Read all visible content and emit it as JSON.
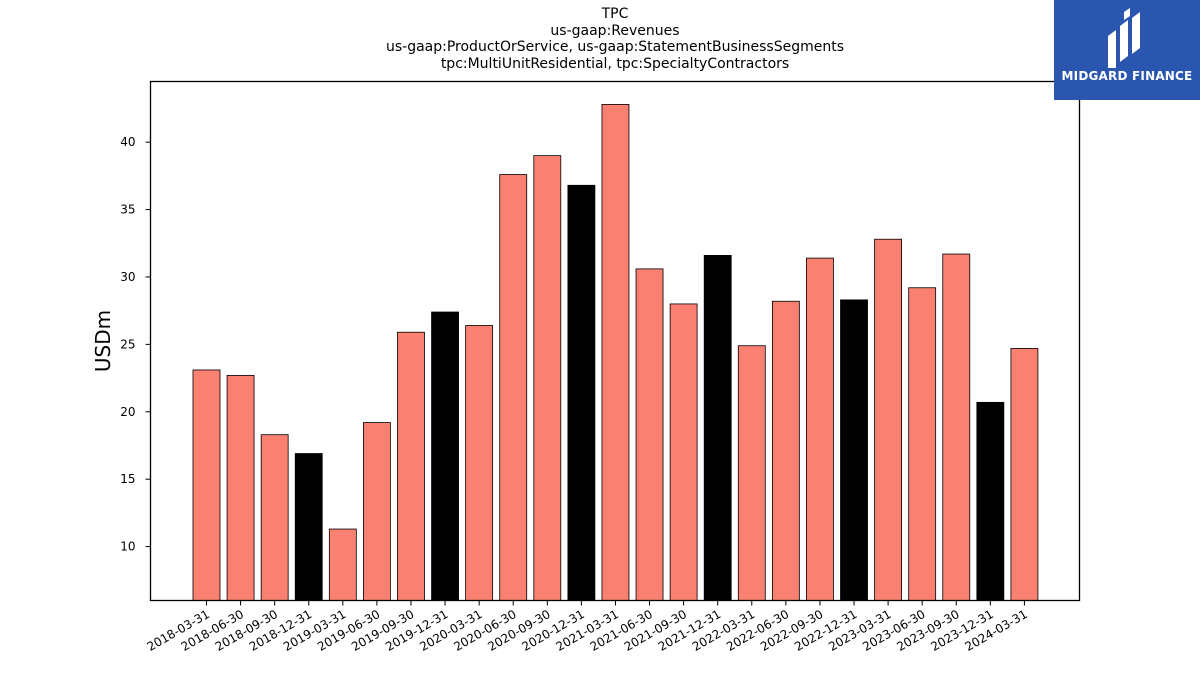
{
  "titles": [
    "TPC",
    "us-gaap:Revenues",
    "us-gaap:ProductOrService, us-gaap:StatementBusinessSegments",
    "tpc:MultiUnitResidential, tpc:SpecialtyContractors"
  ],
  "logo": {
    "text": "MIDGARD FINANCE",
    "color": "#2a56b0"
  },
  "colors": {
    "normal": "#fa8072",
    "year_end": "#000000"
  },
  "chart_data": {
    "type": "bar",
    "title": "TPC",
    "subtitle": "us-gaap:Revenues / us-gaap:ProductOrService, us-gaap:StatementBusinessSegments / tpc:MultiUnitResidential, tpc:SpecialtyContractors",
    "xlabel": "",
    "ylabel": "USDm",
    "ylim": [
      6.0,
      44.5
    ],
    "yticks": [
      10,
      15,
      20,
      25,
      30,
      35,
      40
    ],
    "grid": false,
    "categories": [
      "2018-03-31",
      "2018-06-30",
      "2018-09-30",
      "2018-12-31",
      "2019-03-31",
      "2019-06-30",
      "2019-09-30",
      "2019-12-31",
      "2020-03-31",
      "2020-06-30",
      "2020-09-30",
      "2020-12-31",
      "2021-03-31",
      "2021-06-30",
      "2021-09-30",
      "2021-12-31",
      "2022-03-31",
      "2022-06-30",
      "2022-09-30",
      "2022-12-31",
      "2023-03-31",
      "2023-06-30",
      "2023-09-30",
      "2023-12-31",
      "2024-03-31"
    ],
    "values": [
      23.1,
      22.7,
      18.3,
      16.9,
      11.3,
      19.2,
      25.9,
      27.4,
      26.4,
      37.6,
      39.0,
      36.8,
      42.8,
      30.6,
      28.0,
      31.6,
      24.9,
      28.2,
      31.4,
      28.3,
      32.8,
      29.2,
      31.7,
      20.7,
      24.7
    ],
    "year_end": [
      false,
      false,
      false,
      true,
      false,
      false,
      false,
      true,
      false,
      false,
      false,
      true,
      false,
      false,
      false,
      true,
      false,
      false,
      false,
      true,
      false,
      false,
      false,
      true,
      false
    ]
  }
}
